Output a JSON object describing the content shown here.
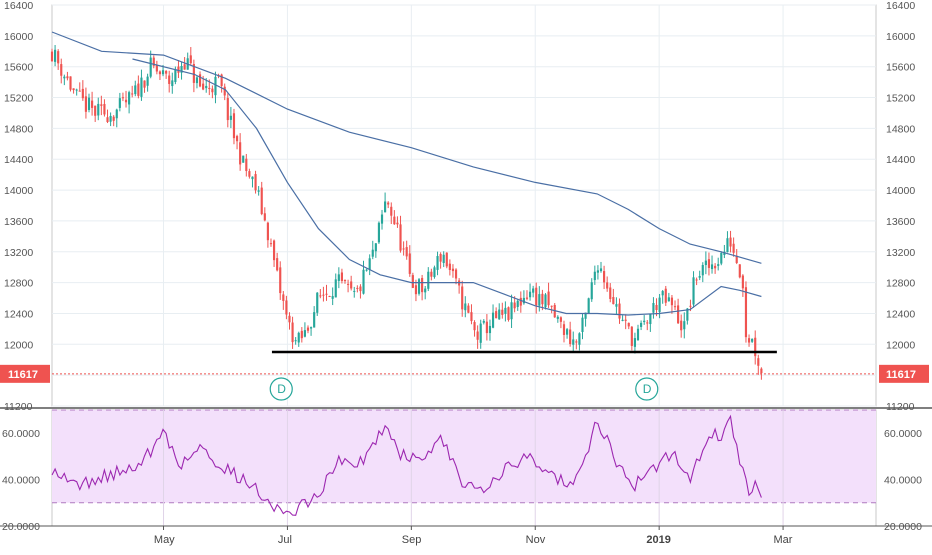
{
  "chart_data": [
    {
      "type": "candlestick",
      "ylim": [
        11200,
        16400
      ],
      "y_ticks": [
        11200,
        11600,
        12000,
        12400,
        12800,
        13200,
        13600,
        14000,
        14400,
        14800,
        15200,
        15600,
        16000,
        16400
      ],
      "y_tick_labels": [
        "11200",
        "11600",
        "12000",
        "12400",
        "12800",
        "13200",
        "13600",
        "14000",
        "14400",
        "14800",
        "15200",
        "15600",
        "16000",
        "16400"
      ],
      "x_ticks": [
        {
          "label": "May",
          "month": 4
        },
        {
          "label": "Jul",
          "month": 6
        },
        {
          "label": "Sep",
          "month": 8
        },
        {
          "label": "Nov",
          "month": 10
        },
        {
          "label": "2019",
          "month": 12
        },
        {
          "label": "Mar",
          "month": 14
        }
      ],
      "x_range_months": [
        2.2,
        15.5
      ],
      "data_months_range": [
        2.2,
        13.65
      ],
      "grid": true,
      "price_path": [
        [
          2.2,
          15800
        ],
        [
          2.4,
          15500
        ],
        [
          2.6,
          15200
        ],
        [
          2.9,
          15000
        ],
        [
          3.2,
          15000
        ],
        [
          3.5,
          15200
        ],
        [
          3.8,
          15600
        ],
        [
          4.1,
          15400
        ],
        [
          4.35,
          15700
        ],
        [
          4.6,
          15300
        ],
        [
          4.9,
          15400
        ],
        [
          5.1,
          14800
        ],
        [
          5.3,
          14300
        ],
        [
          5.5,
          14000
        ],
        [
          5.7,
          13400
        ],
        [
          5.85,
          12800
        ],
        [
          6.0,
          12300
        ],
        [
          6.15,
          12000
        ],
        [
          6.3,
          12150
        ],
        [
          6.5,
          12600
        ],
        [
          6.8,
          12800
        ],
        [
          7.1,
          12600
        ],
        [
          7.4,
          13200
        ],
        [
          7.6,
          13900
        ],
        [
          7.8,
          13400
        ],
        [
          8.0,
          12800
        ],
        [
          8.2,
          12700
        ],
        [
          8.5,
          13200
        ],
        [
          8.8,
          12600
        ],
        [
          9.05,
          12100
        ],
        [
          9.3,
          12300
        ],
        [
          9.6,
          12400
        ],
        [
          9.9,
          12700
        ],
        [
          10.2,
          12500
        ],
        [
          10.45,
          12200
        ],
        [
          10.65,
          12000
        ],
        [
          10.8,
          12300
        ],
        [
          11.0,
          13100
        ],
        [
          11.2,
          12700
        ],
        [
          11.4,
          12300
        ],
        [
          11.6,
          12050
        ],
        [
          11.8,
          12300
        ],
        [
          12.0,
          12600
        ],
        [
          12.2,
          12500
        ],
        [
          12.4,
          12200
        ],
        [
          12.6,
          12900
        ],
        [
          12.8,
          13000
        ],
        [
          13.0,
          13150
        ],
        [
          13.15,
          13350
        ],
        [
          13.25,
          13100
        ],
        [
          13.35,
          12850
        ],
        [
          13.4,
          12150
        ],
        [
          13.5,
          12050
        ],
        [
          13.6,
          11800
        ],
        [
          13.65,
          11617
        ]
      ],
      "sma_fast": [
        [
          3.5,
          15700
        ],
        [
          4.5,
          15500
        ],
        [
          5.0,
          15300
        ],
        [
          5.5,
          14800
        ],
        [
          6.0,
          14100
        ],
        [
          6.5,
          13500
        ],
        [
          7.0,
          13100
        ],
        [
          7.5,
          12900
        ],
        [
          8.0,
          12800
        ],
        [
          8.5,
          12800
        ],
        [
          9.0,
          12800
        ],
        [
          9.5,
          12650
        ],
        [
          10.0,
          12500
        ],
        [
          10.5,
          12400
        ],
        [
          11.0,
          12400
        ],
        [
          11.5,
          12380
        ],
        [
          12.0,
          12400
        ],
        [
          12.5,
          12450
        ],
        [
          13.0,
          12750
        ],
        [
          13.3,
          12700
        ],
        [
          13.65,
          12620
        ]
      ],
      "sma_slow": [
        [
          2.2,
          16050
        ],
        [
          3.0,
          15800
        ],
        [
          4.0,
          15750
        ],
        [
          5.0,
          15450
        ],
        [
          6.0,
          15050
        ],
        [
          7.0,
          14750
        ],
        [
          8.0,
          14550
        ],
        [
          9.0,
          14300
        ],
        [
          10.0,
          14100
        ],
        [
          11.0,
          13950
        ],
        [
          11.5,
          13750
        ],
        [
          12.0,
          13500
        ],
        [
          12.5,
          13300
        ],
        [
          13.0,
          13200
        ],
        [
          13.65,
          13050
        ]
      ],
      "support_level": 11900,
      "support_months": [
        5.75,
        13.9
      ],
      "last_price": 11617,
      "last_price_label": "11617",
      "markers": [
        {
          "label": "D",
          "month": 5.9
        },
        {
          "label": "D",
          "month": 11.8
        }
      ],
      "colors": {
        "up": "#26a69a",
        "down": "#ef5350",
        "sma_fast": "#4a6fa5",
        "sma_slow": "#4a6fa5",
        "support": "#000000",
        "last_price": "#ef5350",
        "marker": "#26a69a"
      }
    },
    {
      "type": "line",
      "ylim": [
        20,
        70
      ],
      "y_ticks": [
        20,
        40,
        60
      ],
      "y_tick_labels": [
        "20.0000",
        "40.0000",
        "60.0000"
      ],
      "band": [
        30,
        70
      ],
      "rsi_path": [
        [
          2.2,
          45
        ],
        [
          2.6,
          37
        ],
        [
          3.0,
          41
        ],
        [
          3.4,
          44
        ],
        [
          3.8,
          52
        ],
        [
          4.0,
          60
        ],
        [
          4.3,
          46
        ],
        [
          4.6,
          55
        ],
        [
          4.8,
          49
        ],
        [
          5.1,
          43
        ],
        [
          5.4,
          38
        ],
        [
          5.7,
          31
        ],
        [
          6.0,
          24
        ],
        [
          6.2,
          28
        ],
        [
          6.5,
          34
        ],
        [
          6.8,
          48
        ],
        [
          7.1,
          45
        ],
        [
          7.4,
          55
        ],
        [
          7.6,
          65
        ],
        [
          7.8,
          52
        ],
        [
          8.1,
          48
        ],
        [
          8.5,
          57
        ],
        [
          8.8,
          40
        ],
        [
          9.1,
          36
        ],
        [
          9.5,
          44
        ],
        [
          9.9,
          50
        ],
        [
          10.3,
          42
        ],
        [
          10.6,
          36
        ],
        [
          10.8,
          48
        ],
        [
          11.0,
          66
        ],
        [
          11.3,
          48
        ],
        [
          11.6,
          38
        ],
        [
          11.9,
          44
        ],
        [
          12.2,
          52
        ],
        [
          12.5,
          40
        ],
        [
          12.8,
          60
        ],
        [
          13.0,
          58
        ],
        [
          13.15,
          66
        ],
        [
          13.3,
          48
        ],
        [
          13.45,
          34
        ],
        [
          13.55,
          38
        ],
        [
          13.65,
          35
        ]
      ],
      "colors": {
        "line": "#9c27b0",
        "band_fill": "#f3e0fb",
        "band_line": "#b07ac0"
      }
    }
  ]
}
